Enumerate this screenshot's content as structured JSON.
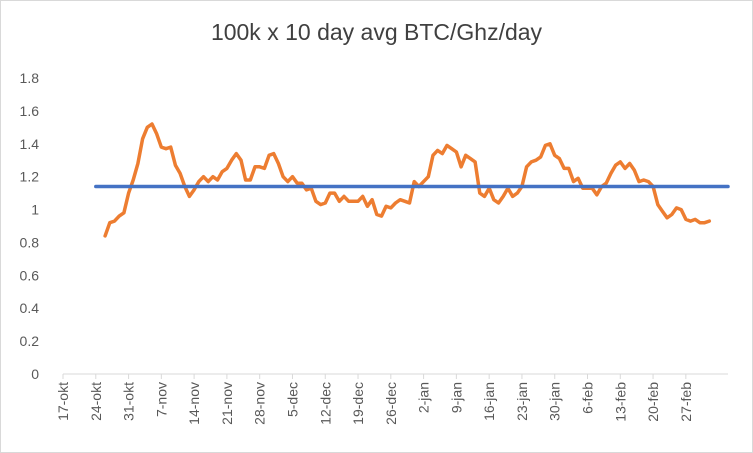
{
  "chart_data": {
    "type": "line",
    "title": "100k x 10 day avg BTC/Ghz/day",
    "xlabel": "",
    "ylabel": "",
    "ylim": [
      0,
      1.8
    ],
    "yticks": [
      "0",
      "0.2",
      "0.4",
      "0.6",
      "0.8",
      "1",
      "1.2",
      "1.4",
      "1.6",
      "1.8"
    ],
    "x_range": [
      "17-okt",
      "8-mar"
    ],
    "xticks": [
      "17-okt",
      "24-okt",
      "31-okt",
      "7-nov",
      "14-nov",
      "21-nov",
      "28-nov",
      "5-dec",
      "12-dec",
      "19-dec",
      "26-dec",
      "2-jan",
      "9-jan",
      "16-jan",
      "23-jan",
      "30-jan",
      "6-feb",
      "13-feb",
      "20-feb",
      "27-feb"
    ],
    "grid": false,
    "legend": "none",
    "series": [
      {
        "color": "#ED7D31",
        "points": [
          [
            "26-okt",
            0.84
          ],
          [
            "27-okt",
            0.92
          ],
          [
            "28-okt",
            0.93
          ],
          [
            "29-okt",
            0.96
          ],
          [
            "30-okt",
            0.98
          ],
          [
            "31-okt",
            1.1
          ],
          [
            "1-nov",
            1.18
          ],
          [
            "2-nov",
            1.28
          ],
          [
            "3-nov",
            1.43
          ],
          [
            "4-nov",
            1.5
          ],
          [
            "5-nov",
            1.52
          ],
          [
            "6-nov",
            1.46
          ],
          [
            "7-nov",
            1.38
          ],
          [
            "8-nov",
            1.37
          ],
          [
            "9-nov",
            1.38
          ],
          [
            "10-nov",
            1.27
          ],
          [
            "11-nov",
            1.22
          ],
          [
            "12-nov",
            1.14
          ],
          [
            "13-nov",
            1.08
          ],
          [
            "14-nov",
            1.12
          ],
          [
            "15-nov",
            1.17
          ],
          [
            "16-nov",
            1.2
          ],
          [
            "17-nov",
            1.17
          ],
          [
            "18-nov",
            1.2
          ],
          [
            "19-nov",
            1.18
          ],
          [
            "20-nov",
            1.23
          ],
          [
            "21-nov",
            1.25
          ],
          [
            "22-nov",
            1.3
          ],
          [
            "23-nov",
            1.34
          ],
          [
            "24-nov",
            1.3
          ],
          [
            "25-nov",
            1.18
          ],
          [
            "26-nov",
            1.18
          ],
          [
            "27-nov",
            1.26
          ],
          [
            "28-nov",
            1.26
          ],
          [
            "29-nov",
            1.25
          ],
          [
            "30-nov",
            1.33
          ],
          [
            "1-dec",
            1.34
          ],
          [
            "2-dec",
            1.28
          ],
          [
            "3-dec",
            1.2
          ],
          [
            "4-dec",
            1.17
          ],
          [
            "5-dec",
            1.2
          ],
          [
            "6-dec",
            1.16
          ],
          [
            "7-dec",
            1.16
          ],
          [
            "8-dec",
            1.12
          ],
          [
            "9-dec",
            1.13
          ],
          [
            "10-dec",
            1.05
          ],
          [
            "11-dec",
            1.03
          ],
          [
            "12-dec",
            1.04
          ],
          [
            "13-dec",
            1.1
          ],
          [
            "14-dec",
            1.1
          ],
          [
            "15-dec",
            1.05
          ],
          [
            "16-dec",
            1.08
          ],
          [
            "17-dec",
            1.05
          ],
          [
            "18-dec",
            1.05
          ],
          [
            "19-dec",
            1.05
          ],
          [
            "20-dec",
            1.08
          ],
          [
            "21-dec",
            1.02
          ],
          [
            "22-dec",
            1.06
          ],
          [
            "23-dec",
            0.97
          ],
          [
            "24-dec",
            0.96
          ],
          [
            "25-dec",
            1.02
          ],
          [
            "26-dec",
            1.01
          ],
          [
            "27-dec",
            1.04
          ],
          [
            "28-dec",
            1.06
          ],
          [
            "29-dec",
            1.05
          ],
          [
            "30-dec",
            1.04
          ],
          [
            "31-dec",
            1.17
          ],
          [
            "1-jan",
            1.14
          ],
          [
            "2-jan",
            1.17
          ],
          [
            "3-jan",
            1.2
          ],
          [
            "4-jan",
            1.33
          ],
          [
            "5-jan",
            1.36
          ],
          [
            "6-jan",
            1.34
          ],
          [
            "7-jan",
            1.39
          ],
          [
            "8-jan",
            1.37
          ],
          [
            "9-jan",
            1.35
          ],
          [
            "10-jan",
            1.26
          ],
          [
            "11-jan",
            1.33
          ],
          [
            "12-jan",
            1.31
          ],
          [
            "13-jan",
            1.29
          ],
          [
            "14-jan",
            1.1
          ],
          [
            "15-jan",
            1.08
          ],
          [
            "16-jan",
            1.13
          ],
          [
            "17-jan",
            1.06
          ],
          [
            "18-jan",
            1.04
          ],
          [
            "19-jan",
            1.08
          ],
          [
            "20-jan",
            1.13
          ],
          [
            "21-jan",
            1.08
          ],
          [
            "22-jan",
            1.1
          ],
          [
            "23-jan",
            1.14
          ],
          [
            "24-jan",
            1.26
          ],
          [
            "25-jan",
            1.29
          ],
          [
            "26-jan",
            1.3
          ],
          [
            "27-jan",
            1.32
          ],
          [
            "28-jan",
            1.39
          ],
          [
            "29-jan",
            1.4
          ],
          [
            "30-jan",
            1.33
          ],
          [
            "31-jan",
            1.31
          ],
          [
            "1-feb",
            1.25
          ],
          [
            "2-feb",
            1.25
          ],
          [
            "3-feb",
            1.17
          ],
          [
            "4-feb",
            1.19
          ],
          [
            "5-feb",
            1.13
          ],
          [
            "6-feb",
            1.13
          ],
          [
            "7-feb",
            1.13
          ],
          [
            "8-feb",
            1.09
          ],
          [
            "9-feb",
            1.14
          ],
          [
            "10-feb",
            1.16
          ],
          [
            "11-feb",
            1.22
          ],
          [
            "12-feb",
            1.27
          ],
          [
            "13-feb",
            1.29
          ],
          [
            "14-feb",
            1.25
          ],
          [
            "15-feb",
            1.28
          ],
          [
            "16-feb",
            1.24
          ],
          [
            "17-feb",
            1.17
          ],
          [
            "18-feb",
            1.18
          ],
          [
            "19-feb",
            1.17
          ],
          [
            "20-feb",
            1.14
          ],
          [
            "21-feb",
            1.03
          ],
          [
            "22-feb",
            0.99
          ],
          [
            "23-feb",
            0.95
          ],
          [
            "24-feb",
            0.97
          ],
          [
            "25-feb",
            1.01
          ],
          [
            "26-feb",
            1.0
          ],
          [
            "27-feb",
            0.94
          ],
          [
            "28-feb",
            0.93
          ],
          [
            "1-mar",
            0.94
          ],
          [
            "2-mar",
            0.92
          ],
          [
            "3-mar",
            0.92
          ],
          [
            "4-mar",
            0.93
          ]
        ]
      },
      {
        "color": "#4472C4",
        "points": [
          [
            "24-okt",
            1.14
          ],
          [
            "8-mar",
            1.14
          ]
        ]
      }
    ]
  }
}
